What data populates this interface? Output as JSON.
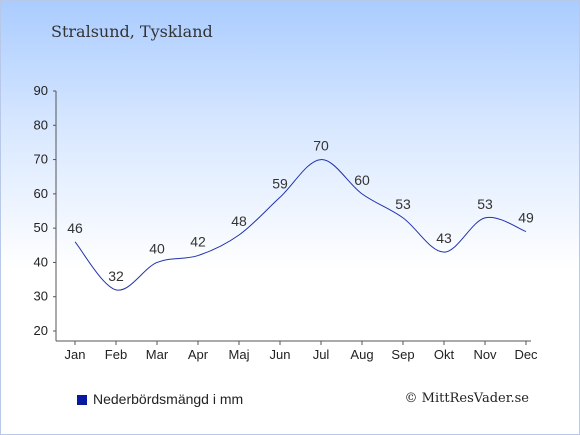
{
  "chart_data": {
    "type": "line",
    "title": "Stralsund, Tyskland",
    "categories": [
      "Jan",
      "Feb",
      "Mar",
      "Apr",
      "Maj",
      "Jun",
      "Jul",
      "Aug",
      "Sep",
      "Okt",
      "Nov",
      "Dec"
    ],
    "series": [
      {
        "name": "Nederbördsmängd i mm",
        "values": [
          46,
          32,
          40,
          42,
          48,
          59,
          70,
          60,
          53,
          43,
          53,
          49
        ]
      }
    ],
    "yticks": [
      20,
      30,
      40,
      50,
      60,
      70,
      80,
      90
    ],
    "ylim": [
      20,
      90
    ],
    "grid": false,
    "legend": "bottom-left",
    "line_color": "#2233aa"
  },
  "legend_label": "Nederbördsmängd i mm",
  "credit": "© MittResVader.se"
}
